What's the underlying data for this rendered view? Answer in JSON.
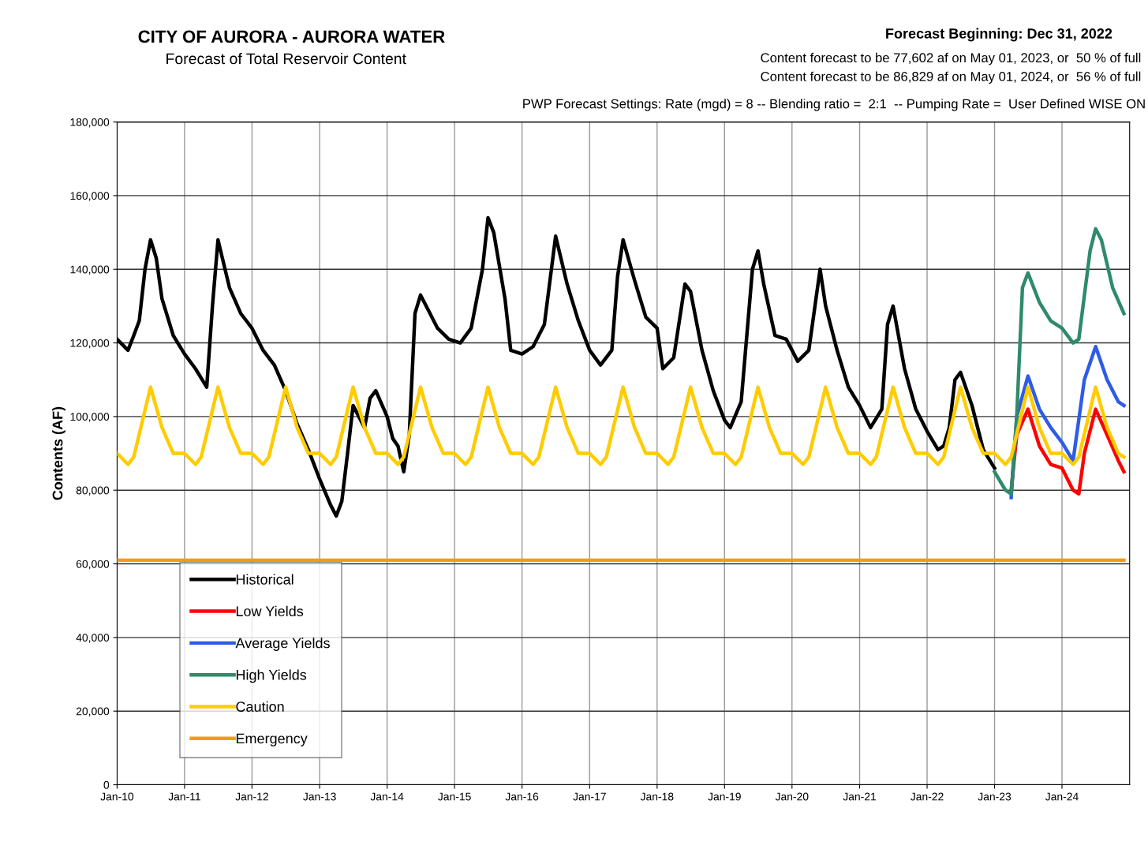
{
  "chart_data": {
    "type": "line",
    "title": "CITY OF AURORA - AURORA WATER",
    "subtitle": "Forecast of Total Reservoir Content",
    "ylabel": "Contents (AF)",
    "annotations": [
      "Forecast Beginning: Dec 31, 2022",
      "Content forecast to be 77,602 af on May 01, 2023, or  50 % of full",
      "Content forecast to be 86,829 af on May 01, 2024, or  56 % of full",
      "PWP Forecast Settings: Rate (mgd) = 8 -- Blending ratio =  2:1  -- Pumping Rate =  User Defined WISE ON"
    ],
    "xlim": [
      "2010-01-01",
      "2025-01-01"
    ],
    "xticks": [
      {
        "value": "2010-01-01",
        "label": "Jan-10"
      },
      {
        "value": "2011-01-01",
        "label": "Jan-11"
      },
      {
        "value": "2012-01-01",
        "label": "Jan-12"
      },
      {
        "value": "2013-01-01",
        "label": "Jan-13"
      },
      {
        "value": "2014-01-01",
        "label": "Jan-14"
      },
      {
        "value": "2015-01-01",
        "label": "Jan-15"
      },
      {
        "value": "2016-01-01",
        "label": "Jan-16"
      },
      {
        "value": "2017-01-01",
        "label": "Jan-17"
      },
      {
        "value": "2018-01-01",
        "label": "Jan-18"
      },
      {
        "value": "2019-01-01",
        "label": "Jan-19"
      },
      {
        "value": "2020-01-01",
        "label": "Jan-20"
      },
      {
        "value": "2021-01-01",
        "label": "Jan-21"
      },
      {
        "value": "2022-01-01",
        "label": "Jan-22"
      },
      {
        "value": "2023-01-01",
        "label": "Jan-23"
      },
      {
        "value": "2024-01-01",
        "label": "Jan-24"
      }
    ],
    "ylim": [
      0,
      180000
    ],
    "yticks": [
      0,
      {
        "value": 20000,
        "label": "20,000"
      },
      {
        "value": 40000,
        "label": "40,000"
      },
      {
        "value": 60000,
        "label": "60,000"
      },
      {
        "value": 80000,
        "label": "80,000"
      },
      {
        "value": 100000,
        "label": "100,000"
      },
      {
        "value": 120000,
        "label": "120,000"
      },
      {
        "value": 140000,
        "label": "140,000"
      },
      {
        "value": 160000,
        "label": "160,000"
      },
      {
        "value": 180000,
        "label": "180,000"
      }
    ],
    "grid": true,
    "legend": "bottom left",
    "marker": "none",
    "line_style": "solid",
    "series": [
      {
        "name": "Historical",
        "color": "#000000",
        "x": [
          "2010-01",
          "2010-03",
          "2010-04",
          "2010-05",
          "2010-06",
          "2010-07",
          "2010-08",
          "2010-09",
          "2010-11",
          "2011-01",
          "2011-03",
          "2011-05",
          "2011-06",
          "2011-07",
          "2011-09",
          "2011-11",
          "2012-01",
          "2012-03",
          "2012-05",
          "2012-07",
          "2012-09",
          "2012-11",
          "2013-01",
          "2013-03",
          "2013-04",
          "2013-05",
          "2013-06",
          "2013-07",
          "2013-09",
          "2013-10",
          "2013-11",
          "2014-01",
          "2014-02",
          "2014-03",
          "2014-04",
          "2014-05",
          "2014-06",
          "2014-07",
          "2014-08",
          "2014-10",
          "2014-12",
          "2015-02",
          "2015-04",
          "2015-06",
          "2015-07",
          "2015-08",
          "2015-10",
          "2015-11",
          "2016-01",
          "2016-03",
          "2016-05",
          "2016-07",
          "2016-09",
          "2016-11",
          "2017-01",
          "2017-03",
          "2017-05",
          "2017-06",
          "2017-07",
          "2017-09",
          "2017-11",
          "2018-01",
          "2018-02",
          "2018-04",
          "2018-06",
          "2018-07",
          "2018-09",
          "2018-11",
          "2019-01",
          "2019-02",
          "2019-04",
          "2019-06",
          "2019-07",
          "2019-08",
          "2019-10",
          "2019-12",
          "2020-02",
          "2020-04",
          "2020-06",
          "2020-07",
          "2020-09",
          "2020-11",
          "2021-01",
          "2021-03",
          "2021-05",
          "2021-06",
          "2021-07",
          "2021-09",
          "2021-11",
          "2022-01",
          "2022-03",
          "2022-04",
          "2022-05",
          "2022-06",
          "2022-07",
          "2022-09",
          "2022-11",
          "2023-01"
        ],
        "values": [
          121000,
          118000,
          122000,
          126000,
          140000,
          148000,
          143000,
          132000,
          122000,
          117000,
          113000,
          108000,
          130000,
          148000,
          135000,
          128000,
          124000,
          118000,
          114000,
          107000,
          98000,
          91000,
          83000,
          76000,
          73000,
          77000,
          90000,
          103000,
          97000,
          105000,
          107000,
          100000,
          94000,
          92000,
          85000,
          95000,
          128000,
          133000,
          130000,
          124000,
          121000,
          120000,
          124000,
          140000,
          154000,
          150000,
          132000,
          118000,
          117000,
          119000,
          125000,
          149000,
          136000,
          126000,
          118000,
          114000,
          118000,
          138000,
          148000,
          137000,
          127000,
          124000,
          113000,
          116000,
          136000,
          134000,
          118000,
          107000,
          99000,
          97000,
          104000,
          140000,
          145000,
          136000,
          122000,
          121000,
          115000,
          118000,
          140000,
          130000,
          118000,
          108000,
          103000,
          97000,
          102000,
          125000,
          130000,
          113000,
          102000,
          96000,
          91000,
          92000,
          97000,
          110000,
          112000,
          103000,
          91000,
          86000
        ]
      },
      {
        "name": "Low Yields",
        "color": "#ff0000",
        "x": [
          "2023-04",
          "2023-05",
          "2023-07",
          "2023-09",
          "2023-11",
          "2024-01",
          "2024-03",
          "2024-04",
          "2024-05",
          "2024-07",
          "2024-09",
          "2024-11",
          "2024-12"
        ],
        "values": [
          80000,
          95000,
          102000,
          92000,
          87000,
          86000,
          80000,
          79000,
          90000,
          102000,
          95000,
          88000,
          85000
        ]
      },
      {
        "name": "Average Yields",
        "color": "#2e5ce6",
        "x": [
          "2023-04",
          "2023-05",
          "2023-07",
          "2023-09",
          "2023-11",
          "2024-01",
          "2024-03",
          "2024-05",
          "2024-07",
          "2024-09",
          "2024-11",
          "2024-12"
        ],
        "values": [
          78000,
          100000,
          111000,
          102000,
          97000,
          93000,
          88000,
          110000,
          119000,
          110000,
          104000,
          103000
        ]
      },
      {
        "name": "High Yields",
        "color": "#2e8b6a",
        "x": [
          "2023-01",
          "2023-03",
          "2023-04",
          "2023-05",
          "2023-06",
          "2023-07",
          "2023-09",
          "2023-11",
          "2024-01",
          "2024-03",
          "2024-04",
          "2024-06",
          "2024-07",
          "2024-08",
          "2024-10",
          "2024-12"
        ],
        "values": [
          85000,
          80000,
          79000,
          100000,
          135000,
          139000,
          131000,
          126000,
          124000,
          120000,
          121000,
          145000,
          151000,
          148000,
          135000,
          128000
        ]
      },
      {
        "name": "Caution",
        "color": "#ffcc00",
        "x": [
          "2010-01",
          "2010-03",
          "2010-04",
          "2010-07",
          "2010-09",
          "2010-11",
          "2011-01",
          "2011-03",
          "2011-04",
          "2011-07",
          "2011-09",
          "2011-11",
          "2012-01",
          "2012-03",
          "2012-04",
          "2012-07",
          "2012-09",
          "2012-11",
          "2013-01",
          "2013-03",
          "2013-04",
          "2013-07",
          "2013-09",
          "2013-11",
          "2014-01",
          "2014-03",
          "2014-04",
          "2014-07",
          "2014-09",
          "2014-11",
          "2015-01",
          "2015-03",
          "2015-04",
          "2015-07",
          "2015-09",
          "2015-11",
          "2016-01",
          "2016-03",
          "2016-04",
          "2016-07",
          "2016-09",
          "2016-11",
          "2017-01",
          "2017-03",
          "2017-04",
          "2017-07",
          "2017-09",
          "2017-11",
          "2018-01",
          "2018-03",
          "2018-04",
          "2018-07",
          "2018-09",
          "2018-11",
          "2019-01",
          "2019-03",
          "2019-04",
          "2019-07",
          "2019-09",
          "2019-11",
          "2020-01",
          "2020-03",
          "2020-04",
          "2020-07",
          "2020-09",
          "2020-11",
          "2021-01",
          "2021-03",
          "2021-04",
          "2021-07",
          "2021-09",
          "2021-11",
          "2022-01",
          "2022-03",
          "2022-04",
          "2022-07",
          "2022-09",
          "2022-11",
          "2023-01",
          "2023-03",
          "2023-04",
          "2023-07",
          "2023-09",
          "2023-11",
          "2024-01",
          "2024-03",
          "2024-04",
          "2024-07",
          "2024-09",
          "2024-11",
          "2024-12"
        ],
        "values": [
          90000,
          87000,
          89000,
          108000,
          97000,
          90000,
          90000,
          87000,
          89000,
          108000,
          97000,
          90000,
          90000,
          87000,
          89000,
          108000,
          97000,
          90000,
          90000,
          87000,
          89000,
          108000,
          97000,
          90000,
          90000,
          87000,
          89000,
          108000,
          97000,
          90000,
          90000,
          87000,
          89000,
          108000,
          97000,
          90000,
          90000,
          87000,
          89000,
          108000,
          97000,
          90000,
          90000,
          87000,
          89000,
          108000,
          97000,
          90000,
          90000,
          87000,
          89000,
          108000,
          97000,
          90000,
          90000,
          87000,
          89000,
          108000,
          97000,
          90000,
          90000,
          87000,
          89000,
          108000,
          97000,
          90000,
          90000,
          87000,
          89000,
          108000,
          97000,
          90000,
          90000,
          87000,
          89000,
          108000,
          97000,
          90000,
          90000,
          87000,
          89000,
          108000,
          97000,
          90000,
          90000,
          87000,
          89000,
          108000,
          97000,
          90000,
          89000
        ]
      },
      {
        "name": "Emergency",
        "color": "#f39c12",
        "x": [
          "2010-01",
          "2024-12"
        ],
        "values": [
          61000,
          61000
        ]
      }
    ]
  }
}
